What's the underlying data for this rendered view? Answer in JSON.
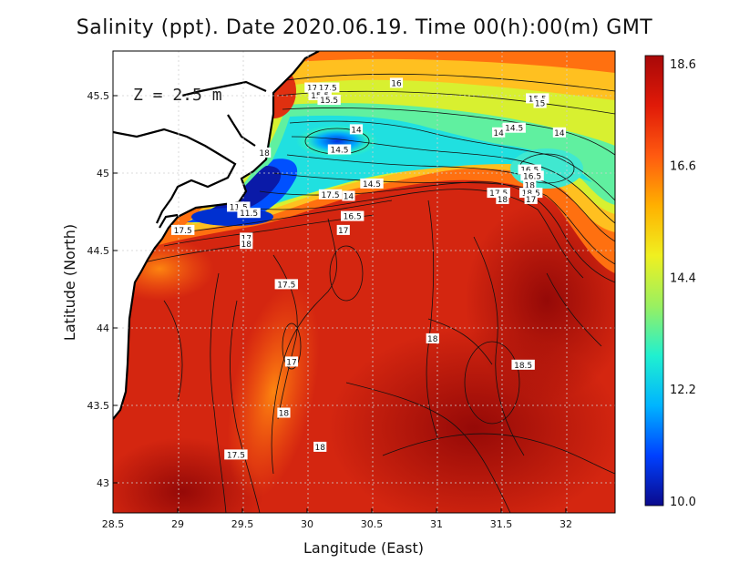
{
  "title": "Salinity (ppt). Date 2020.06.19. Time 00(h):00(m) GMT",
  "depth_label": "Z = 2.5 m",
  "x_axis": {
    "title": "Langitude (East)",
    "ticks": [
      "28.5",
      "29",
      "29.5",
      "30",
      "30.5",
      "31",
      "31.5",
      "32"
    ]
  },
  "y_axis": {
    "title": "Latitude (North)",
    "ticks": [
      "43",
      "43.5",
      "44",
      "44.5",
      "45",
      "45.5"
    ]
  },
  "colorbar": {
    "ticks": [
      "18.6",
      "16.6",
      "14.4",
      "12.2",
      "10.0"
    ],
    "range": [
      10.0,
      18.6
    ],
    "colors": [
      "#0a0a8c",
      "#0040ff",
      "#00b4ff",
      "#20f0d0",
      "#9af060",
      "#f0f020",
      "#ffb000",
      "#ff5a10",
      "#e01a08",
      "#a80808"
    ]
  },
  "contour_labels": [
    {
      "text": "17.5",
      "lon": 30.07,
      "lat": 45.55
    },
    {
      "text": "17.5",
      "lon": 30.16,
      "lat": 45.55
    },
    {
      "text": "15.5",
      "lon": 30.1,
      "lat": 45.5
    },
    {
      "text": "15.5",
      "lon": 30.17,
      "lat": 45.47
    },
    {
      "text": "16",
      "lon": 30.69,
      "lat": 45.58
    },
    {
      "text": "15.5",
      "lon": 31.78,
      "lat": 45.48
    },
    {
      "text": "15",
      "lon": 31.8,
      "lat": 45.45
    },
    {
      "text": "14",
      "lon": 30.38,
      "lat": 45.28
    },
    {
      "text": "14",
      "lon": 31.48,
      "lat": 45.26
    },
    {
      "text": "14.5",
      "lon": 31.6,
      "lat": 45.29
    },
    {
      "text": "14",
      "lon": 31.95,
      "lat": 45.26
    },
    {
      "text": "18",
      "lon": 29.67,
      "lat": 45.13
    },
    {
      "text": "14.5",
      "lon": 30.25,
      "lat": 45.15
    },
    {
      "text": "16.5",
      "lon": 31.72,
      "lat": 45.02
    },
    {
      "text": "16.5",
      "lon": 31.74,
      "lat": 44.98
    },
    {
      "text": "14.5",
      "lon": 30.5,
      "lat": 44.93
    },
    {
      "text": "17.5",
      "lon": 30.18,
      "lat": 44.86
    },
    {
      "text": "14",
      "lon": 30.32,
      "lat": 44.85
    },
    {
      "text": "17.5",
      "lon": 31.48,
      "lat": 44.87
    },
    {
      "text": "18",
      "lon": 31.51,
      "lat": 44.83
    },
    {
      "text": "18",
      "lon": 31.72,
      "lat": 44.92
    },
    {
      "text": "18.5",
      "lon": 31.73,
      "lat": 44.87
    },
    {
      "text": "17",
      "lon": 31.73,
      "lat": 44.83
    },
    {
      "text": "11.5",
      "lon": 29.47,
      "lat": 44.78
    },
    {
      "text": "11.5",
      "lon": 29.55,
      "lat": 44.74
    },
    {
      "text": "16.5",
      "lon": 30.35,
      "lat": 44.72
    },
    {
      "text": "17",
      "lon": 30.28,
      "lat": 44.63
    },
    {
      "text": "17.5",
      "lon": 29.04,
      "lat": 44.63
    },
    {
      "text": "17",
      "lon": 29.53,
      "lat": 44.58
    },
    {
      "text": "18",
      "lon": 29.53,
      "lat": 44.54
    },
    {
      "text": "17.5",
      "lon": 29.84,
      "lat": 44.28
    },
    {
      "text": "17",
      "lon": 29.88,
      "lat": 43.78
    },
    {
      "text": "18",
      "lon": 30.97,
      "lat": 43.93
    },
    {
      "text": "18.5",
      "lon": 31.67,
      "lat": 43.76
    },
    {
      "text": "18",
      "lon": 29.82,
      "lat": 43.45
    },
    {
      "text": "17.5",
      "lon": 29.45,
      "lat": 43.18
    },
    {
      "text": "18",
      "lon": 30.1,
      "lat": 43.23
    }
  ]
}
